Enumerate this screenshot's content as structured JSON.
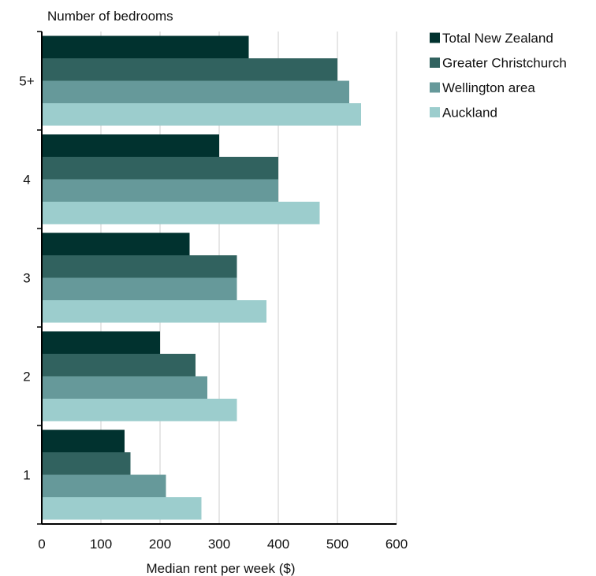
{
  "chart_data": {
    "type": "bar",
    "orientation": "horizontal",
    "title": "",
    "ylabel": "Number of bedrooms",
    "xlabel": "Median rent per week ($)",
    "categories": [
      "5+",
      "4",
      "3",
      "2",
      "1"
    ],
    "xlim": [
      0,
      600
    ],
    "xticks": [
      0,
      100,
      200,
      300,
      400,
      500,
      600
    ],
    "grid": "vertical",
    "legend_position": "right",
    "series": [
      {
        "name": "Total New Zealand",
        "color": "#01322f",
        "values": [
          350,
          300,
          250,
          200,
          140
        ]
      },
      {
        "name": "Greater Christchurch",
        "color": "#31625f",
        "values": [
          500,
          400,
          330,
          260,
          150
        ]
      },
      {
        "name": "Wellington area",
        "color": "#66999a",
        "values": [
          520,
          400,
          330,
          280,
          210
        ]
      },
      {
        "name": "Auckland",
        "color": "#9ccdcd",
        "values": [
          540,
          470,
          380,
          330,
          270
        ]
      }
    ]
  }
}
